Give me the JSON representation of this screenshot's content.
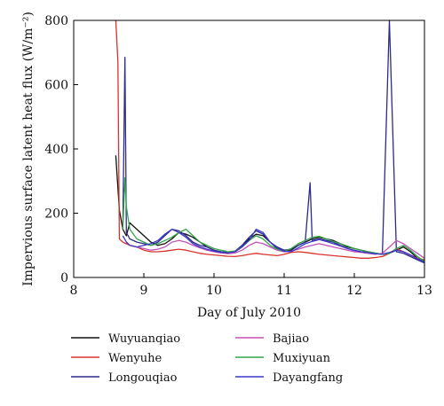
{
  "chart_data": {
    "type": "line",
    "title": "",
    "xlabel": "Day of July 2010",
    "ylabel": "Impervious surface latent heat flux (W/m⁻²)",
    "xlim": [
      8,
      13
    ],
    "ylim": [
      0,
      800
    ],
    "x_ticks": [
      "8",
      "9",
      "10",
      "11",
      "12",
      "13"
    ],
    "y_ticks": [
      "0",
      "200",
      "400",
      "600",
      "800"
    ],
    "grid": false,
    "legend_position": "below",
    "series": [
      {
        "name": "Wuyuanqiao",
        "color": "#111111",
        "x": [
          8.6,
          8.65,
          8.7,
          8.75,
          8.8,
          8.9,
          9.0,
          9.1,
          9.2,
          9.3,
          9.4,
          9.5,
          9.6,
          9.7,
          9.8,
          9.9,
          10.0,
          10.1,
          10.2,
          10.3,
          10.4,
          10.5,
          10.6,
          10.7,
          10.8,
          10.9,
          11.0,
          11.1,
          11.2,
          11.3,
          11.4,
          11.5,
          11.6,
          11.7,
          11.8,
          11.9,
          12.0,
          12.1,
          12.2,
          12.3,
          12.4,
          12.5,
          12.6,
          12.7,
          12.8,
          12.9,
          13.0
        ],
        "y": [
          380,
          210,
          150,
          130,
          170,
          150,
          130,
          110,
          100,
          105,
          120,
          140,
          135,
          125,
          110,
          95,
          85,
          80,
          78,
          80,
          95,
          120,
          135,
          130,
          110,
          90,
          80,
          85,
          100,
          110,
          120,
          125,
          120,
          115,
          105,
          95,
          90,
          85,
          80,
          75,
          72,
          75,
          85,
          95,
          80,
          60,
          50
        ]
      },
      {
        "name": "Wenyuhe",
        "color": "#d9342a",
        "x": [
          8.6,
          8.63,
          8.65,
          8.7,
          8.8,
          8.9,
          9.0,
          9.1,
          9.2,
          9.3,
          9.4,
          9.5,
          9.6,
          9.7,
          9.8,
          9.9,
          10.0,
          10.1,
          10.2,
          10.3,
          10.4,
          10.5,
          10.6,
          10.7,
          10.8,
          10.9,
          11.0,
          11.1,
          11.2,
          11.3,
          11.4,
          11.5,
          11.6,
          11.7,
          11.8,
          11.9,
          12.0,
          12.1,
          12.2,
          12.3,
          12.4,
          12.5,
          12.6,
          12.7,
          12.8,
          12.9,
          13.0
        ],
        "y": [
          800,
          670,
          120,
          110,
          100,
          95,
          85,
          80,
          80,
          82,
          85,
          88,
          85,
          80,
          75,
          72,
          70,
          68,
          66,
          65,
          68,
          72,
          75,
          72,
          70,
          68,
          72,
          78,
          80,
          78,
          75,
          72,
          70,
          68,
          66,
          64,
          62,
          60,
          60,
          62,
          65,
          75,
          90,
          80,
          70,
          60,
          55
        ]
      },
      {
        "name": "Longouqiao",
        "color": "#2e2a8c",
        "x": [
          8.7,
          8.73,
          8.75,
          8.8,
          8.9,
          9.0,
          9.1,
          9.2,
          9.3,
          9.4,
          9.5,
          9.6,
          9.7,
          9.8,
          9.9,
          10.0,
          10.1,
          10.2,
          10.3,
          10.4,
          10.5,
          10.6,
          10.7,
          10.8,
          10.9,
          11.0,
          11.1,
          11.2,
          11.3,
          11.37,
          11.4,
          11.5,
          11.6,
          11.7,
          11.8,
          11.9,
          12.0,
          12.1,
          12.2,
          12.3,
          12.4,
          12.5,
          12.6,
          12.7,
          12.8,
          12.9,
          13.0
        ],
        "y": [
          150,
          685,
          140,
          120,
          110,
          105,
          100,
          110,
          130,
          150,
          145,
          130,
          110,
          100,
          95,
          85,
          80,
          78,
          82,
          100,
          125,
          145,
          135,
          110,
          95,
          85,
          88,
          100,
          110,
          295,
          115,
          120,
          115,
          110,
          100,
          90,
          85,
          80,
          78,
          75,
          72,
          800,
          80,
          75,
          65,
          55,
          45
        ]
      },
      {
        "name": "Bajiao",
        "color": "#c052b8",
        "x": [
          8.75,
          8.8,
          8.9,
          9.0,
          9.1,
          9.2,
          9.3,
          9.4,
          9.5,
          9.6,
          9.7,
          9.8,
          9.9,
          10.0,
          10.1,
          10.2,
          10.3,
          10.4,
          10.5,
          10.6,
          10.7,
          10.8,
          10.9,
          11.0,
          11.1,
          11.2,
          11.3,
          11.4,
          11.5,
          11.6,
          11.7,
          11.8,
          11.9,
          12.0,
          12.1,
          12.2,
          12.3,
          12.4,
          12.5,
          12.6,
          12.7,
          12.8,
          12.9,
          13.0
        ],
        "y": [
          110,
          100,
          95,
          90,
          85,
          88,
          95,
          110,
          115,
          110,
          100,
          92,
          85,
          80,
          76,
          74,
          76,
          85,
          100,
          110,
          105,
          95,
          85,
          80,
          82,
          88,
          95,
          100,
          105,
          100,
          95,
          90,
          85,
          80,
          78,
          75,
          72,
          75,
          95,
          115,
          105,
          90,
          75,
          60
        ]
      },
      {
        "name": "Muxiyuan",
        "color": "#35a44a",
        "x": [
          8.7,
          8.73,
          8.75,
          8.8,
          8.9,
          9.0,
          9.1,
          9.2,
          9.3,
          9.4,
          9.5,
          9.6,
          9.7,
          9.8,
          9.9,
          10.0,
          10.1,
          10.2,
          10.3,
          10.4,
          10.5,
          10.6,
          10.7,
          10.8,
          10.9,
          11.0,
          11.1,
          11.2,
          11.3,
          11.4,
          11.5,
          11.6,
          11.7,
          11.8,
          11.9,
          12.0,
          12.1,
          12.2,
          12.3,
          12.4,
          12.5,
          12.6,
          12.7,
          12.8,
          12.9,
          13.0
        ],
        "y": [
          150,
          310,
          220,
          150,
          120,
          110,
          100,
          105,
          115,
          125,
          140,
          150,
          130,
          110,
          100,
          90,
          85,
          80,
          82,
          95,
          115,
          130,
          120,
          100,
          88,
          82,
          90,
          105,
          115,
          125,
          128,
          120,
          112,
          105,
          98,
          90,
          85,
          80,
          76,
          72,
          75,
          90,
          100,
          85,
          65,
          50
        ]
      },
      {
        "name": "Dayangfang",
        "color": "#3a38c8",
        "x": [
          8.7,
          8.75,
          8.8,
          8.9,
          9.0,
          9.1,
          9.2,
          9.3,
          9.4,
          9.5,
          9.6,
          9.7,
          9.8,
          9.9,
          10.0,
          10.1,
          10.2,
          10.3,
          10.4,
          10.5,
          10.6,
          10.7,
          10.8,
          10.9,
          11.0,
          11.1,
          11.2,
          11.3,
          11.4,
          11.5,
          11.6,
          11.7,
          11.8,
          11.9,
          12.0,
          12.1,
          12.2,
          12.3,
          12.4,
          12.5,
          12.6,
          12.7,
          12.8,
          12.9,
          13.0
        ],
        "y": [
          130,
          110,
          100,
          95,
          100,
          105,
          115,
          135,
          150,
          140,
          125,
          105,
          95,
          88,
          82,
          78,
          76,
          80,
          95,
          115,
          150,
          140,
          110,
          92,
          82,
          80,
          92,
          105,
          112,
          118,
          112,
          105,
          98,
          90,
          84,
          80,
          77,
          74,
          72,
          78,
          85,
          80,
          70,
          58,
          48
        ]
      }
    ]
  }
}
